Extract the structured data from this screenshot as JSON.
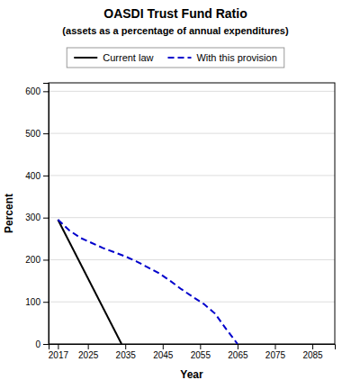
{
  "chart_data": {
    "type": "line",
    "title": "OASDI  Trust Fund Ratio",
    "subtitle": "(assets as a percentage of annual expenditures)",
    "xlabel": "Year",
    "ylabel": "Percent",
    "xlim": [
      2014.5,
      2091
    ],
    "xticks": [
      2017,
      2025,
      2035,
      2045,
      2055,
      2065,
      2075,
      2085
    ],
    "ylim": [
      0,
      620
    ],
    "yticks": [
      0,
      100,
      200,
      300,
      400,
      500,
      600
    ],
    "grid": true,
    "legend": "top",
    "series": [
      {
        "name": "Current law",
        "color": "#000000",
        "line_style": "solid",
        "x": [
          2017,
          2034
        ],
        "values": [
          295,
          0
        ]
      },
      {
        "name": "With this provision",
        "color": "#0000cc",
        "line_style": "dashed",
        "x": [
          2017,
          2020,
          2023,
          2026,
          2029,
          2032,
          2035,
          2038,
          2041,
          2044,
          2047,
          2050,
          2053,
          2056,
          2059,
          2062,
          2065
        ],
        "values": [
          295,
          270,
          252,
          240,
          228,
          218,
          208,
          196,
          182,
          168,
          150,
          130,
          112,
          95,
          72,
          35,
          0
        ]
      }
    ]
  }
}
